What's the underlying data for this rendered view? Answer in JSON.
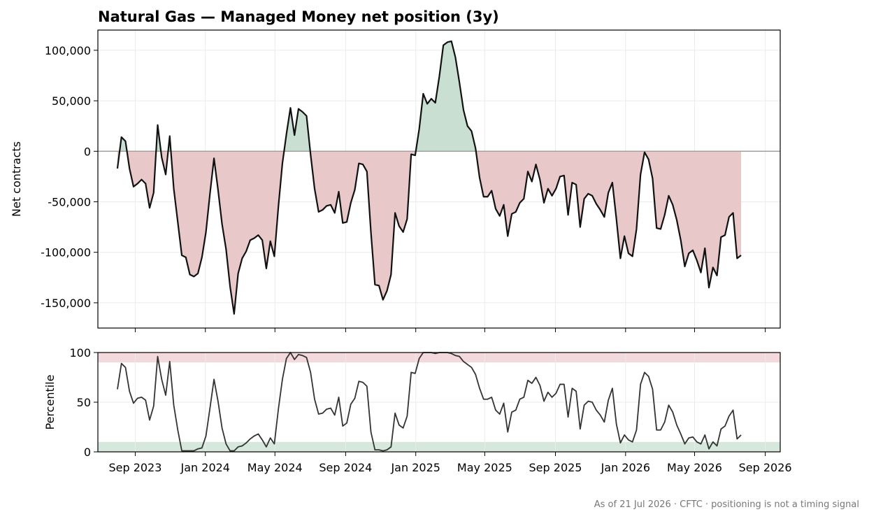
{
  "chart_data": [
    {
      "type": "area",
      "title": "Natural Gas — Managed Money net position (3y)",
      "ylabel": "Net contracts",
      "ylim": [
        -175000,
        120000
      ],
      "yticks": [
        100000,
        50000,
        0,
        -50000,
        -100000,
        -150000
      ],
      "ytick_labels": [
        "100,000",
        "50,000",
        "0",
        "-50,000",
        "-100,000",
        "-150,000"
      ],
      "xlim": [
        "2023-06-28",
        "2026-09-27"
      ],
      "xticks": [
        "2023-09-01",
        "2024-01-01",
        "2024-05-01",
        "2024-09-01",
        "2025-01-01",
        "2025-05-01",
        "2025-09-01",
        "2026-01-01",
        "2026-05-01",
        "2026-09-01"
      ],
      "fill_positive_color": "#c9dfd1",
      "fill_negative_color": "#e8c8c9",
      "line_color": "#111111",
      "zero_line_color": "#a0a0a0",
      "grid": true,
      "series": [
        {
          "x": [
            "2023-08-01",
            "2023-08-08",
            "2023-08-15",
            "2023-08-22",
            "2023-08-29",
            "2023-09-05",
            "2023-09-12",
            "2023-09-19",
            "2023-09-26",
            "2023-10-03",
            "2023-10-10",
            "2023-10-17",
            "2023-10-24",
            "2023-10-31",
            "2023-11-07",
            "2023-11-14",
            "2023-11-21",
            "2023-11-28",
            "2023-12-05",
            "2023-12-12",
            "2023-12-19",
            "2023-12-26",
            "2024-01-02",
            "2024-01-09",
            "2024-01-16",
            "2024-01-23",
            "2024-01-30",
            "2024-02-06",
            "2024-02-13",
            "2024-02-20",
            "2024-02-27",
            "2024-03-05",
            "2024-03-12",
            "2024-03-19",
            "2024-03-26",
            "2024-04-02",
            "2024-04-09",
            "2024-04-16",
            "2024-04-23",
            "2024-04-30",
            "2024-05-07",
            "2024-05-14",
            "2024-05-21",
            "2024-05-28",
            "2024-06-04",
            "2024-06-11",
            "2024-06-18",
            "2024-06-25",
            "2024-07-02",
            "2024-07-09",
            "2024-07-16",
            "2024-07-23",
            "2024-07-30",
            "2024-08-06",
            "2024-08-13",
            "2024-08-20",
            "2024-08-27",
            "2024-09-03",
            "2024-09-10",
            "2024-09-17",
            "2024-09-24",
            "2024-10-01",
            "2024-10-08",
            "2024-10-15",
            "2024-10-22",
            "2024-10-29",
            "2024-11-05",
            "2024-11-12",
            "2024-11-19",
            "2024-11-26",
            "2024-12-03",
            "2024-12-10",
            "2024-12-17",
            "2024-12-24",
            "2024-12-31",
            "2025-01-07",
            "2025-01-14",
            "2025-01-21",
            "2025-01-28",
            "2025-02-04",
            "2025-02-11",
            "2025-02-18",
            "2025-02-25",
            "2025-03-04",
            "2025-03-11",
            "2025-03-18",
            "2025-03-25",
            "2025-04-01",
            "2025-04-08",
            "2025-04-15",
            "2025-04-22",
            "2025-04-29",
            "2025-05-06",
            "2025-05-13",
            "2025-05-20",
            "2025-05-27",
            "2025-06-03",
            "2025-06-10",
            "2025-06-17",
            "2025-06-24",
            "2025-07-01",
            "2025-07-08",
            "2025-07-15",
            "2025-07-22",
            "2025-07-29",
            "2025-08-05",
            "2025-08-12",
            "2025-08-19",
            "2025-08-26",
            "2025-09-02",
            "2025-09-09",
            "2025-09-16",
            "2025-09-23",
            "2025-09-30",
            "2025-10-07",
            "2025-10-14",
            "2025-10-21",
            "2025-10-28",
            "2025-11-04",
            "2025-11-11",
            "2025-11-18",
            "2025-11-25",
            "2025-12-02",
            "2025-12-09",
            "2025-12-16",
            "2025-12-23",
            "2025-12-30",
            "2026-01-06",
            "2026-01-13",
            "2026-01-20",
            "2026-01-27",
            "2026-02-03",
            "2026-02-10",
            "2026-02-17",
            "2026-02-24",
            "2026-03-03",
            "2026-03-10",
            "2026-03-17",
            "2026-03-24",
            "2026-03-31",
            "2026-04-07",
            "2026-04-14",
            "2026-04-21",
            "2026-04-28",
            "2026-05-05",
            "2026-05-12",
            "2026-05-19",
            "2026-05-26",
            "2026-06-02",
            "2026-06-09",
            "2026-06-16",
            "2026-06-23",
            "2026-06-30",
            "2026-07-07",
            "2026-07-14",
            "2026-07-21"
          ],
          "values": [
            -17000,
            14000,
            10000,
            -17000,
            -35000,
            -32000,
            -28000,
            -32000,
            -56000,
            -41000,
            26000,
            -6000,
            -23000,
            15000,
            -37000,
            -70000,
            -103000,
            -105000,
            -122000,
            -124000,
            -121000,
            -105000,
            -80000,
            -42000,
            -7000,
            -38000,
            -72000,
            -97000,
            -134000,
            -161000,
            -121000,
            -106000,
            -99000,
            -88000,
            -86000,
            -83000,
            -88000,
            -116000,
            -89000,
            -104000,
            -55000,
            -12000,
            17000,
            43000,
            16000,
            42000,
            39000,
            35000,
            -3000,
            -37000,
            -60000,
            -58000,
            -54000,
            -53000,
            -61000,
            -40000,
            -71000,
            -70000,
            -51000,
            -38000,
            -12000,
            -13000,
            -20000,
            -80000,
            -132000,
            -133000,
            -147000,
            -138000,
            -122000,
            -61000,
            -74000,
            -80000,
            -67000,
            -3000,
            -4000,
            22000,
            57000,
            47000,
            52000,
            48000,
            74000,
            105000,
            108000,
            109000,
            93000,
            68000,
            41000,
            25000,
            20000,
            3000,
            -26000,
            -45000,
            -45000,
            -39000,
            -57000,
            -64000,
            -53000,
            -84000,
            -62000,
            -60000,
            -51000,
            -47000,
            -20000,
            -30000,
            -13000,
            -28000,
            -51000,
            -37000,
            -44000,
            -37000,
            -25000,
            -24000,
            -63000,
            -31000,
            -33000,
            -75000,
            -47000,
            -42000,
            -44000,
            -52000,
            -58000,
            -65000,
            -41000,
            -31000,
            -67000,
            -106000,
            -84000,
            -101000,
            -104000,
            -77000,
            -23000,
            -1000,
            -8000,
            -27000,
            -76000,
            -77000,
            -63000,
            -44000,
            -53000,
            -68000,
            -88000,
            -114000,
            -101000,
            -98000,
            -108000,
            -120000,
            -96000,
            -135000,
            -115000,
            -123000,
            -85000,
            -83000,
            -65000,
            -61000,
            -106000,
            -103000
          ]
        }
      ]
    },
    {
      "type": "line",
      "ylabel": "Percentile",
      "ylim": [
        0,
        100
      ],
      "yticks": [
        100,
        50,
        0
      ],
      "ytick_labels": [
        "100",
        "50",
        "0"
      ],
      "xlim": [
        "2023-06-28",
        "2026-09-27"
      ],
      "xtick_labels": [
        "Sep 2023",
        "Jan 2024",
        "May 2024",
        "Sep 2024",
        "Jan 2025",
        "May 2025",
        "Sep 2025",
        "Jan 2026",
        "May 2026",
        "Sep 2026"
      ],
      "upper_band": [
        90,
        100
      ],
      "lower_band": [
        0,
        10
      ],
      "upper_band_color": "#f3d9db",
      "lower_band_color": "#d6e8dc",
      "line_color": "#333333",
      "grid": true,
      "series": [
        {
          "values": [
            63,
            89,
            85,
            61,
            49,
            54,
            55,
            52,
            32,
            46,
            96,
            73,
            57,
            91,
            47,
            22,
            1,
            1,
            1,
            1,
            3,
            4,
            16,
            44,
            73,
            51,
            24,
            8,
            1,
            1,
            5,
            6,
            9,
            13,
            16,
            18,
            12,
            5,
            14,
            8,
            43,
            73,
            94,
            100,
            93,
            98,
            97,
            95,
            80,
            53,
            38,
            39,
            43,
            44,
            37,
            55,
            26,
            29,
            48,
            54,
            71,
            70,
            66,
            20,
            2,
            2,
            1,
            2,
            5,
            39,
            27,
            24,
            36,
            80,
            79,
            94,
            100,
            100,
            100,
            99,
            100,
            100,
            100,
            99,
            97,
            96,
            91,
            88,
            85,
            78,
            64,
            53,
            53,
            55,
            42,
            38,
            49,
            20,
            40,
            42,
            53,
            55,
            72,
            69,
            75,
            67,
            51,
            60,
            55,
            59,
            68,
            68,
            35,
            64,
            61,
            23,
            47,
            51,
            50,
            42,
            37,
            30,
            52,
            64,
            28,
            9,
            17,
            12,
            10,
            22,
            68,
            80,
            76,
            63,
            22,
            22,
            30,
            47,
            40,
            27,
            18,
            8,
            14,
            15,
            10,
            8,
            17,
            3,
            10,
            6,
            23,
            26,
            36,
            42,
            13,
            17
          ]
        }
      ]
    }
  ],
  "footnote": "As of 21 Jul 2026 · CFTC · positioning is not a timing signal"
}
